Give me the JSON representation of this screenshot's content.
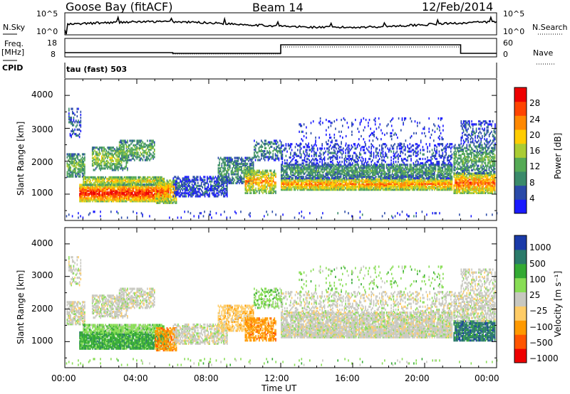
{
  "header": {
    "station": "Goose Bay (fitACF)",
    "beam": "Beam 14",
    "date": "12/Feb/2014"
  },
  "strip_labels": {
    "nsky": "N.Sky",
    "nsearch": "N.Search",
    "freq": "Freq.",
    "freq_unit": "[MHz]",
    "nave": "Nave",
    "cpid": "CPID",
    "cpid_value": "tau (fast) 503"
  },
  "strip_ticks": {
    "noise_left": [
      "10^5",
      "10^0"
    ],
    "noise_right": [
      "10^5",
      "10^0"
    ],
    "freq_left": [
      "18",
      "8"
    ],
    "nave_right": [
      "60",
      "0"
    ]
  },
  "colors": {
    "power_scale": [
      "#1a1aff",
      "#2a4aa8",
      "#3a8a6a",
      "#55aa55",
      "#aacc33",
      "#ffcc00",
      "#ff8800",
      "#ff4400",
      "#ee0000"
    ],
    "velocity_scale": [
      "#ee0000",
      "#ff5500",
      "#ff9900",
      "#ffcc66",
      "#c8c8c0",
      "#88dd55",
      "#33aa33",
      "#2a7a6a",
      "#1a3aa8"
    ]
  },
  "chart_data": [
    {
      "type": "heatmap",
      "name": "power",
      "xlabel": "",
      "ylabel": "Slant Range [km]",
      "x_ticks": [
        "00:00",
        "04:00",
        "08:00",
        "12:00",
        "16:00",
        "20:00",
        "00:00"
      ],
      "y_ticks": [
        "1000",
        "2000",
        "3000",
        "4000"
      ],
      "xlim_hours": [
        0,
        24
      ],
      "ylim_km": [
        200,
        4500
      ],
      "colorbar_label": "Power [dB]",
      "colorbar_ticks": [
        "28",
        "24",
        "20",
        "16",
        "12",
        "8",
        "4"
      ],
      "colorbar_range": [
        0,
        30
      ]
    },
    {
      "type": "heatmap",
      "name": "velocity",
      "xlabel": "Time UT",
      "ylabel": "Slant Range [km]",
      "x_ticks": [
        "00:00",
        "04:00",
        "08:00",
        "12:00",
        "16:00",
        "20:00",
        "00:00"
      ],
      "y_ticks": [
        "1000",
        "2000",
        "3000",
        "4000"
      ],
      "xlim_hours": [
        0,
        24
      ],
      "ylim_km": [
        200,
        4500
      ],
      "colorbar_label": "Velocity [m s⁻¹]",
      "colorbar_ticks": [
        "1000",
        "500",
        "100",
        "25",
        "−25",
        "−100",
        "−500",
        "−1000"
      ]
    }
  ]
}
